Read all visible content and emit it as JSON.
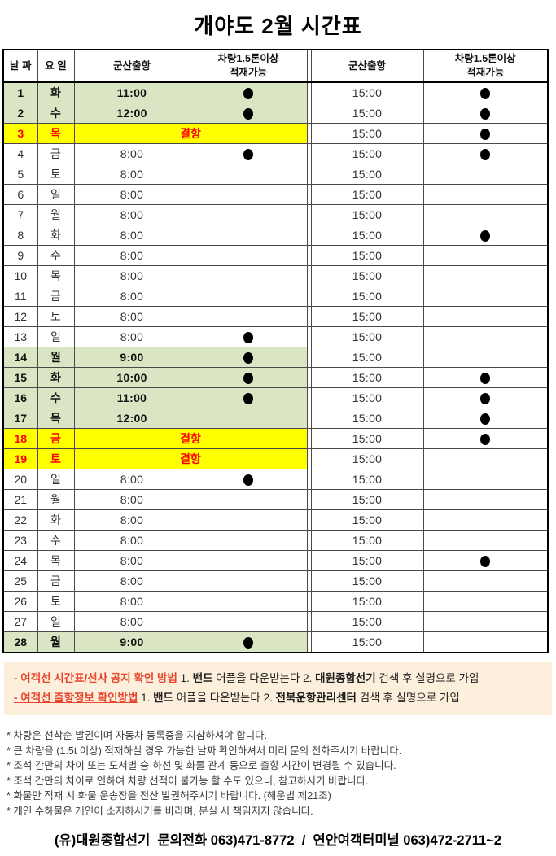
{
  "title": "개야도 2월 시간표",
  "colors": {
    "highlight_green": "#D9E5C3",
    "highlight_yellow": "#FFFF00",
    "cancel_red": "#FF0000",
    "notice_background": "#FCF0DC",
    "notice_heading_red": "#E8432D"
  },
  "table": {
    "headers": [
      "날 짜",
      "요 일",
      "군산출항",
      "차량1.5톤이상\n적재가능",
      "군산출항",
      "차량1.5톤이상\n적재가능"
    ],
    "cancel_label": "결항",
    "rows": [
      {
        "date": "1",
        "day": "화",
        "t1": "11:00",
        "d1": true,
        "t2": "15:00",
        "d2": true,
        "hl": "green"
      },
      {
        "date": "2",
        "day": "수",
        "t1": "12:00",
        "d1": true,
        "t2": "15:00",
        "d2": true,
        "hl": "green"
      },
      {
        "date": "3",
        "day": "목",
        "cancel": true,
        "t2": "15:00",
        "d2": true,
        "hl": "yellow"
      },
      {
        "date": "4",
        "day": "금",
        "t1": "8:00",
        "d1": true,
        "t2": "15:00",
        "d2": true
      },
      {
        "date": "5",
        "day": "토",
        "t1": "8:00",
        "t2": "15:00"
      },
      {
        "date": "6",
        "day": "일",
        "t1": "8:00",
        "t2": "15:00"
      },
      {
        "date": "7",
        "day": "월",
        "t1": "8:00",
        "t2": "15:00"
      },
      {
        "date": "8",
        "day": "화",
        "t1": "8:00",
        "t2": "15:00",
        "d2": true
      },
      {
        "date": "9",
        "day": "수",
        "t1": "8:00",
        "t2": "15:00"
      },
      {
        "date": "10",
        "day": "목",
        "t1": "8:00",
        "t2": "15:00"
      },
      {
        "date": "11",
        "day": "금",
        "t1": "8:00",
        "t2": "15:00"
      },
      {
        "date": "12",
        "day": "토",
        "t1": "8:00",
        "t2": "15:00"
      },
      {
        "date": "13",
        "day": "일",
        "t1": "8:00",
        "d1": true,
        "t2": "15:00"
      },
      {
        "date": "14",
        "day": "월",
        "t1": "9:00",
        "d1": true,
        "t2": "15:00",
        "hl": "green"
      },
      {
        "date": "15",
        "day": "화",
        "t1": "10:00",
        "d1": true,
        "t2": "15:00",
        "d2": true,
        "hl": "green"
      },
      {
        "date": "16",
        "day": "수",
        "t1": "11:00",
        "d1": true,
        "t2": "15:00",
        "d2": true,
        "hl": "green"
      },
      {
        "date": "17",
        "day": "목",
        "t1": "12:00",
        "t2": "15:00",
        "d2": true,
        "hl": "green"
      },
      {
        "date": "18",
        "day": "금",
        "cancel": true,
        "t2": "15:00",
        "d2": true,
        "hl": "yellow"
      },
      {
        "date": "19",
        "day": "토",
        "cancel": true,
        "t2": "15:00",
        "hl": "yellow"
      },
      {
        "date": "20",
        "day": "일",
        "t1": "8:00",
        "d1": true,
        "t2": "15:00"
      },
      {
        "date": "21",
        "day": "월",
        "t1": "8:00",
        "t2": "15:00"
      },
      {
        "date": "22",
        "day": "화",
        "t1": "8:00",
        "t2": "15:00"
      },
      {
        "date": "23",
        "day": "수",
        "t1": "8:00",
        "t2": "15:00"
      },
      {
        "date": "24",
        "day": "목",
        "t1": "8:00",
        "t2": "15:00",
        "d2": true
      },
      {
        "date": "25",
        "day": "금",
        "t1": "8:00",
        "t2": "15:00"
      },
      {
        "date": "26",
        "day": "토",
        "t1": "8:00",
        "t2": "15:00"
      },
      {
        "date": "27",
        "day": "일",
        "t1": "8:00",
        "t2": "15:00"
      },
      {
        "date": "28",
        "day": "월",
        "t1": "9:00",
        "d1": true,
        "t2": "15:00",
        "hl": "green"
      }
    ]
  },
  "notices": [
    {
      "head": "- 여객선 시간표/선사 공지 확인 방법",
      "seg1": " 1. ",
      "b1": "밴드",
      "seg2": " 어플을 다운받는다 2. ",
      "b2": "대원종합선기",
      "seg3": " 검색 후 실명으로 가입"
    },
    {
      "head": "- 여객선 출항정보 확인방법",
      "seg1": " 1. ",
      "b1": "밴드",
      "seg2": " 어플을 다운받는다 2. ",
      "b2": "전북운항관리센터",
      "seg3": " 검색 후 실명으로 가입"
    }
  ],
  "notes": [
    "* 차량은 선착순 발권이며 자동차 등록증을 지참하셔야 합니다.",
    "* 큰 차량을 (1.5t 이상) 적재하실 경우 가능한 날짜 확인하셔서 미리 문의 전화주시기 바랍니다.",
    "* 조석 간만의 차이 또는 도서별 승·하선 및 화물 관계 등으로 출항 시간이 변경될 수 있습니다.",
    "* 조석 간만의 차이로 인하여 차량 선적이 불가능 할 수도 있으니, 참고하시기 바랍니다.",
    "* 화물만 적재 시 화물 운송장을 전산 발권해주시기 바랍니다. (해운법 제21조)",
    "* 개인 수하물은 개인이 소지하시기를 바라며, 분실 시 책임지지 않습니다."
  ],
  "footer": "(유)대원종합선기  문의전화 063)471-8772  /  연안여객터미널 063)472-2711~2"
}
